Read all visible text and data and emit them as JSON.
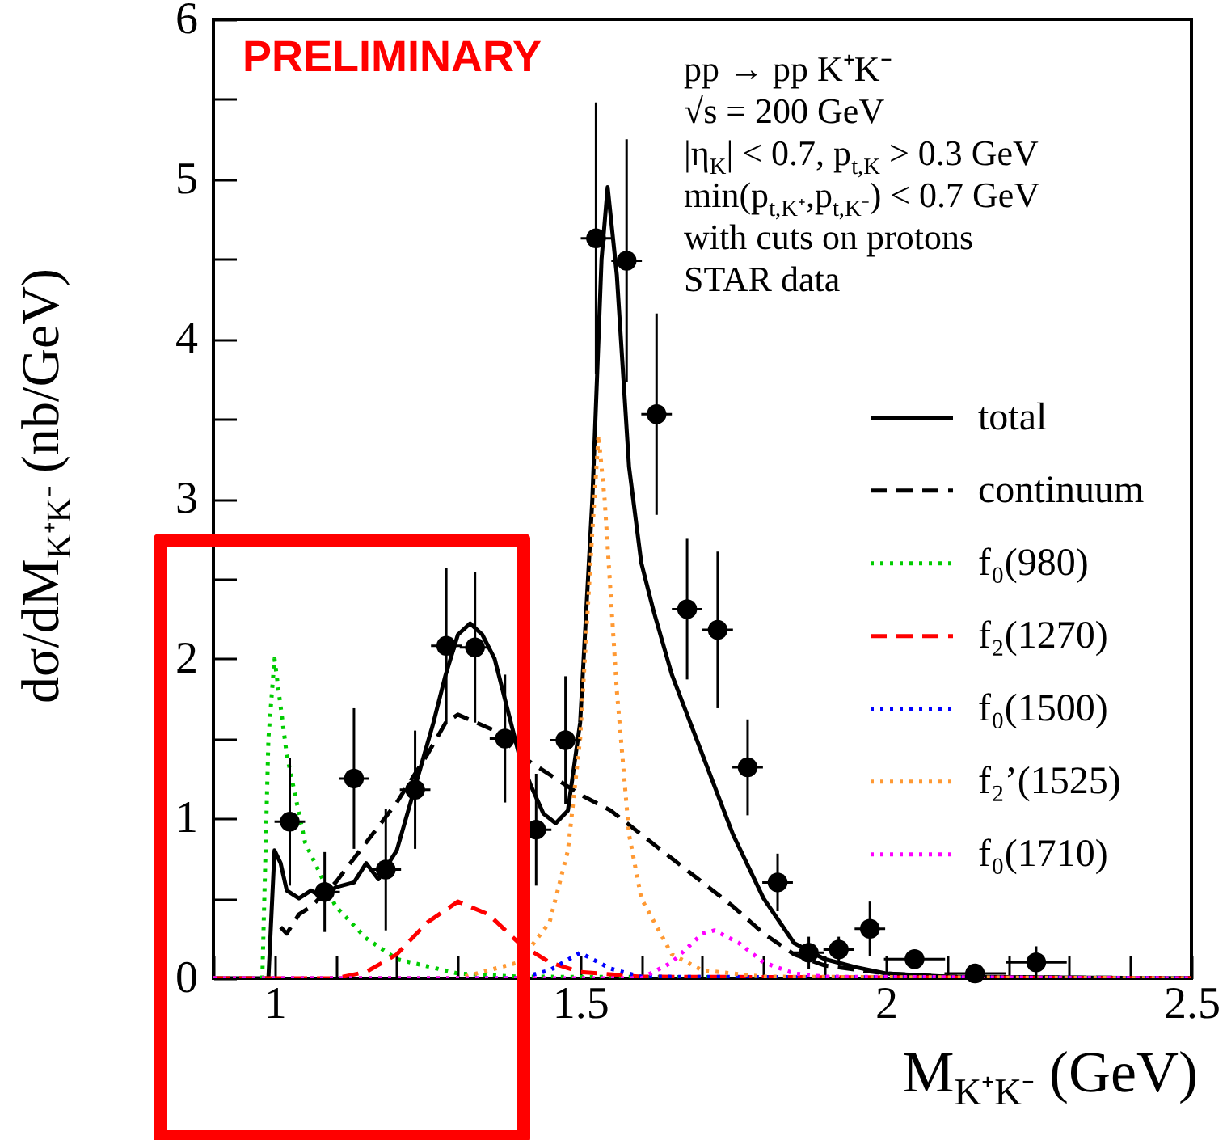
{
  "chart_data": {
    "type": "line",
    "xlabel": "M$_{K⁺K⁻}$ (GeV)",
    "ylabel": "dσ/dM$_{K⁺K⁻}$ (nb/GeV)",
    "annotations": [
      "PRELIMINARY",
      "pp → pp K⁺K⁻",
      "√s = 200 GeV",
      "|η$_{K}$| < 0.7,  p$_{t,K}$ > 0.3 GeV",
      "min(p$_{t,K⁺}$,p$_{t,K⁻}$) < 0.7 GeV",
      "with cuts on protons",
      "STAR data"
    ],
    "xlim": [
      0.9,
      2.5
    ],
    "ylim": [
      0,
      6
    ],
    "xticks": [
      {
        "value": 0.9,
        "label": null
      },
      1,
      {
        "value": 1.1,
        "label": null
      },
      {
        "value": 1.2,
        "label": null
      },
      {
        "value": 1.3,
        "label": null
      },
      {
        "value": 1.4,
        "label": null
      },
      1.5,
      {
        "value": 1.6,
        "label": null
      },
      {
        "value": 1.7,
        "label": null
      },
      {
        "value": 1.8,
        "label": null
      },
      {
        "value": 1.9,
        "label": null
      },
      2,
      {
        "value": 2.1,
        "label": null
      },
      {
        "value": 2.2,
        "label": null
      },
      {
        "value": 2.3,
        "label": null
      },
      {
        "value": 2.4,
        "label": null
      },
      2.5
    ],
    "yticks": [
      0,
      {
        "value": 0.5,
        "label": null
      },
      1,
      {
        "value": 1.5,
        "label": null
      },
      2,
      {
        "value": 2.5,
        "label": null
      },
      3,
      {
        "value": 3.5,
        "label": null
      },
      4,
      {
        "value": 4.5,
        "label": null
      },
      5,
      {
        "value": 5.5,
        "label": null
      },
      6
    ],
    "grid": false,
    "legend": "right",
    "series": [
      {
        "type": "scatter",
        "color": "#000000",
        "marker": "circle",
        "x": [
          1.025,
          1.082,
          1.13,
          1.182,
          1.23,
          1.281,
          1.328,
          1.377,
          1.428,
          1.476,
          1.526,
          1.576,
          1.625,
          1.675,
          1.725,
          1.774,
          1.823,
          1.874,
          1.923,
          1.974,
          2.047,
          2.146,
          2.246
        ],
        "values": [
          0.98,
          0.54,
          1.25,
          0.68,
          1.18,
          2.08,
          2.07,
          1.5,
          0.93,
          1.49,
          4.63,
          4.49,
          3.53,
          2.31,
          2.18,
          1.32,
          0.6,
          0.16,
          0.18,
          0.31,
          0.12,
          0.03,
          0.1
        ],
        "errors": [
          0.4,
          0.25,
          0.44,
          0.38,
          0.37,
          0.49,
          0.47,
          0.4,
          0.35,
          0.4,
          0.85,
          0.76,
          0.63,
          0.44,
          0.49,
          0.3,
          0.18,
          0.1,
          0.08,
          0.17,
          null,
          null,
          0.1
        ],
        "xerrors": [
          0.025,
          0.025,
          0.025,
          0.025,
          0.025,
          0.025,
          0.025,
          0.025,
          0.025,
          0.025,
          0.025,
          0.025,
          0.025,
          0.025,
          0.025,
          0.025,
          0.025,
          0.025,
          0.025,
          0.025,
          0.05,
          0.05,
          0.05
        ]
      },
      {
        "name": "total",
        "color": "#000000",
        "line_style": "solid",
        "x": [
          0.9,
          0.99,
          1.0,
          1.01,
          1.02,
          1.04,
          1.06,
          1.08,
          1.1,
          1.13,
          1.15,
          1.17,
          1.2,
          1.23,
          1.26,
          1.28,
          1.3,
          1.32,
          1.34,
          1.36,
          1.38,
          1.4,
          1.42,
          1.44,
          1.46,
          1.48,
          1.5,
          1.52,
          1.535,
          1.545,
          1.56,
          1.58,
          1.6,
          1.62,
          1.65,
          1.7,
          1.75,
          1.8,
          1.85,
          1.9,
          1.95,
          2.0,
          2.1,
          2.5
        ],
        "values": [
          0,
          0,
          0.8,
          0.72,
          0.55,
          0.5,
          0.55,
          0.5,
          0.57,
          0.6,
          0.72,
          0.62,
          0.8,
          1.2,
          1.6,
          1.9,
          2.15,
          2.22,
          2.15,
          2.0,
          1.7,
          1.4,
          1.2,
          1.03,
          0.97,
          1.05,
          1.6,
          3.0,
          4.5,
          4.95,
          4.4,
          3.2,
          2.6,
          2.3,
          1.9,
          1.4,
          0.9,
          0.5,
          0.22,
          0.12,
          0.07,
          0.03,
          0.01,
          0
        ]
      },
      {
        "name": "continuum",
        "color": "#000000",
        "line_style": "dashed",
        "x": [
          1.01,
          1.02,
          1.04,
          1.06,
          1.1,
          1.15,
          1.2,
          1.25,
          1.28,
          1.3,
          1.33,
          1.36,
          1.4,
          1.44,
          1.5,
          1.55,
          1.6,
          1.65,
          1.7,
          1.75,
          1.8,
          1.85,
          1.9,
          2.0,
          2.1,
          2.5
        ],
        "values": [
          0.32,
          0.28,
          0.4,
          0.45,
          0.6,
          0.85,
          1.1,
          1.4,
          1.6,
          1.65,
          1.6,
          1.55,
          1.4,
          1.3,
          1.15,
          1.05,
          0.9,
          0.75,
          0.6,
          0.45,
          0.28,
          0.15,
          0.08,
          0.03,
          0.01,
          0
        ]
      },
      {
        "name": "f₀(980)",
        "color": "#00cc00",
        "line_style": "dotted",
        "x": [
          0.9,
          0.98,
          0.99,
          1.0,
          1.02,
          1.05,
          1.1,
          1.15,
          1.2,
          1.3,
          1.4,
          2.5
        ],
        "values": [
          0,
          0,
          1.5,
          2.0,
          1.4,
          0.85,
          0.45,
          0.25,
          0.12,
          0.03,
          0.01,
          0
        ]
      },
      {
        "name": "f₂(1270)",
        "color": "#ff0000",
        "line_style": "dashed",
        "x": [
          0.9,
          1.1,
          1.15,
          1.2,
          1.25,
          1.3,
          1.35,
          1.4,
          1.45,
          1.5,
          1.6,
          2.5
        ],
        "values": [
          0,
          0,
          0.04,
          0.15,
          0.35,
          0.48,
          0.4,
          0.22,
          0.1,
          0.04,
          0.01,
          0
        ]
      },
      {
        "name": "f₀(1500)",
        "color": "#0000ff",
        "line_style": "dotted",
        "x": [
          0.9,
          1.4,
          1.45,
          1.5,
          1.55,
          1.6,
          2.5
        ],
        "values": [
          0,
          0,
          0.05,
          0.16,
          0.06,
          0.01,
          0
        ]
      },
      {
        "name": "f₂’(1525)",
        "color": "#ff9933",
        "line_style": "dotted",
        "x": [
          0.9,
          1.3,
          1.4,
          1.45,
          1.48,
          1.5,
          1.52,
          1.53,
          1.54,
          1.56,
          1.58,
          1.6,
          1.65,
          1.7,
          1.8,
          2.5
        ],
        "values": [
          0,
          0,
          0.1,
          0.35,
          0.8,
          1.5,
          2.8,
          3.4,
          3.0,
          1.8,
          0.9,
          0.5,
          0.15,
          0.05,
          0.01,
          0
        ]
      },
      {
        "name": "f₀(1710)",
        "color": "#ff00ff",
        "line_style": "dotted",
        "x": [
          0.9,
          1.6,
          1.65,
          1.7,
          1.72,
          1.76,
          1.8,
          1.85,
          1.9,
          2.5
        ],
        "values": [
          0,
          0,
          0.1,
          0.28,
          0.3,
          0.22,
          0.1,
          0.03,
          0.01,
          0
        ]
      }
    ]
  }
}
